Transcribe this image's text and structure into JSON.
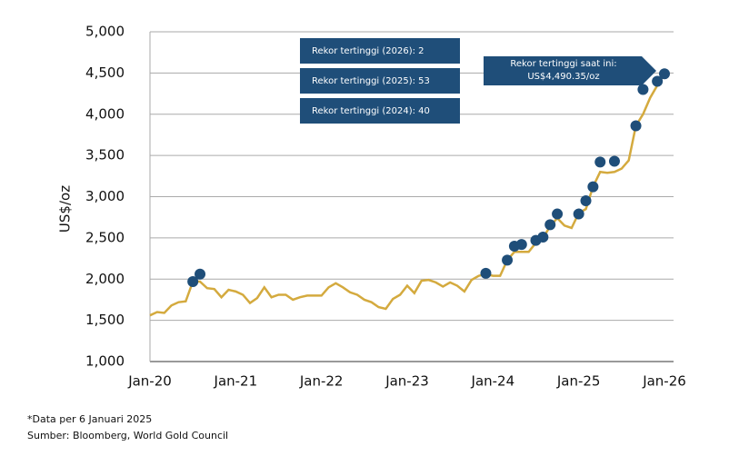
{
  "chart_data": {
    "type": "line",
    "y_label": "US$/oz",
    "annotations": [
      "Rekor tertinggi (2026): 2",
      "Rekor tertinggi (2025): 53",
      "Rekor tertinggi (2024): 40",
      "Rekor tertinggi saat ini:",
      "US$4,490.35/oz"
    ],
    "notes": [
      "*Data per 6 Januari 2025",
      "Sumber: Bloomberg, World Gold Council"
    ],
    "x": [
      "2020-01",
      "2020-02",
      "2020-03",
      "2020-04",
      "2020-05",
      "2020-06",
      "2020-07",
      "2020-08",
      "2020-09",
      "2020-10",
      "2020-11",
      "2020-12",
      "2021-01",
      "2021-02",
      "2021-03",
      "2021-04",
      "2021-05",
      "2021-06",
      "2021-07",
      "2021-08",
      "2021-09",
      "2021-10",
      "2021-11",
      "2021-12",
      "2022-01",
      "2022-02",
      "2022-03",
      "2022-04",
      "2022-05",
      "2022-06",
      "2022-07",
      "2022-08",
      "2022-09",
      "2022-10",
      "2022-11",
      "2022-12",
      "2023-01",
      "2023-02",
      "2023-03",
      "2023-04",
      "2023-05",
      "2023-06",
      "2023-07",
      "2023-08",
      "2023-09",
      "2023-10",
      "2023-11",
      "2023-12",
      "2024-01",
      "2024-02",
      "2024-03",
      "2024-04",
      "2024-05",
      "2024-06",
      "2024-07",
      "2024-08",
      "2024-09",
      "2024-10",
      "2024-11",
      "2024-12",
      "2025-01",
      "2025-02",
      "2025-03",
      "2025-04",
      "2025-05",
      "2025-06",
      "2025-07",
      "2025-08",
      "2025-09",
      "2025-10",
      "2025-11",
      "2025-12",
      "2026-01"
    ],
    "series": [
      {
        "type": "line",
        "color": "#d4aa3e",
        "values": [
          1560,
          1600,
          1590,
          1680,
          1720,
          1730,
          1970,
          1970,
          1890,
          1880,
          1780,
          1870,
          1850,
          1810,
          1710,
          1770,
          1900,
          1780,
          1810,
          1810,
          1750,
          1780,
          1800,
          1800,
          1800,
          1900,
          1950,
          1900,
          1840,
          1810,
          1750,
          1720,
          1660,
          1640,
          1760,
          1810,
          1920,
          1830,
          1980,
          1990,
          1960,
          1910,
          1960,
          1920,
          1850,
          1990,
          2040,
          2060,
          2040,
          2040,
          2230,
          2330,
          2330,
          2330,
          2440,
          2500,
          2640,
          2740,
          2650,
          2620,
          2800,
          2850,
          3120,
          3300,
          3290,
          3300,
          3340,
          3440,
          3860,
          4000,
          4200,
          4350,
          4490
        ]
      },
      {
        "type": "scatter",
        "color": "#1f4e79",
        "values": [
          null,
          null,
          null,
          null,
          null,
          null,
          1970,
          2060,
          null,
          null,
          null,
          null,
          null,
          null,
          null,
          null,
          null,
          null,
          null,
          null,
          null,
          null,
          null,
          null,
          null,
          null,
          null,
          null,
          null,
          null,
          null,
          null,
          null,
          null,
          null,
          null,
          null,
          null,
          null,
          null,
          null,
          null,
          null,
          null,
          null,
          null,
          null,
          2070,
          null,
          null,
          2230,
          2400,
          2420,
          null,
          2470,
          2510,
          2660,
          2790,
          null,
          null,
          2790,
          2950,
          3120,
          3420,
          null,
          3430,
          null,
          null,
          3860,
          4300,
          null,
          4400,
          4490
        ]
      }
    ],
    "xlim": [
      "2020-01",
      "2026-01"
    ],
    "xticks": [
      {
        "value": "2020-01",
        "label": "Jan-20"
      },
      {
        "value": "2021-01",
        "label": "Jan-21"
      },
      {
        "value": "2022-01",
        "label": "Jan-22"
      },
      {
        "value": "2023-01",
        "label": "Jan-23"
      },
      {
        "value": "2024-01",
        "label": "Jan-24"
      },
      {
        "value": "2025-01",
        "label": "Jan-25"
      },
      {
        "value": "2026-01",
        "label": "Jan-26"
      }
    ],
    "ylim": [
      1000,
      5000
    ],
    "yticks": [
      {
        "value": 1000,
        "label": "1,000"
      },
      {
        "value": 1500,
        "label": "1,500"
      },
      {
        "value": 2000,
        "label": "2,000"
      },
      {
        "value": 2500,
        "label": "2,500"
      },
      {
        "value": 3000,
        "label": "3,000"
      },
      {
        "value": 3500,
        "label": "3,500"
      },
      {
        "value": 4000,
        "label": "4,000"
      },
      {
        "value": 4500,
        "label": "4,500"
      },
      {
        "value": 5000,
        "label": "5,000"
      }
    ],
    "grid": true
  }
}
